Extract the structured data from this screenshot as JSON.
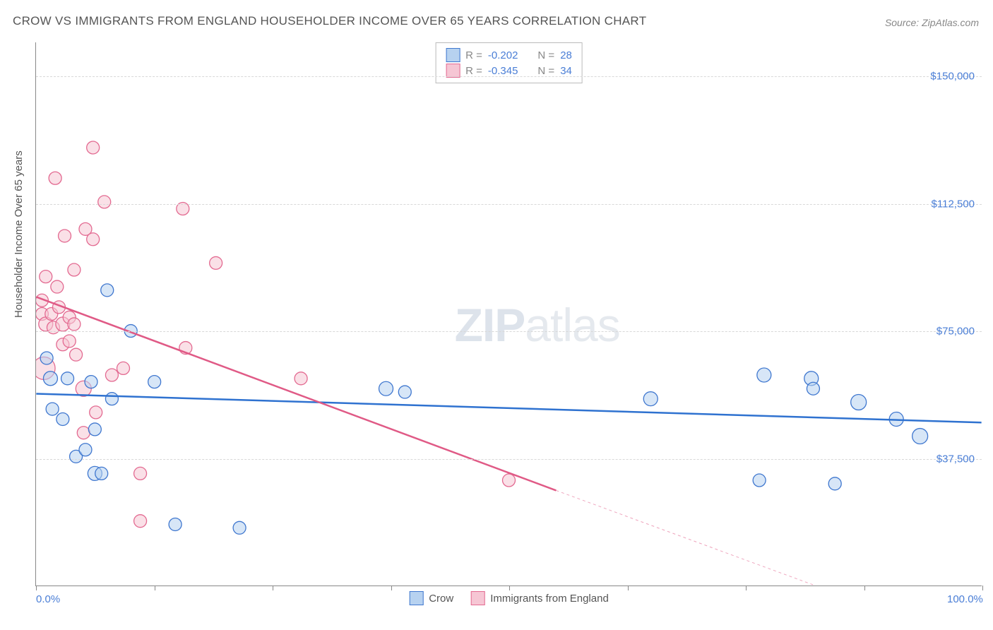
{
  "title": "CROW VS IMMIGRANTS FROM ENGLAND HOUSEHOLDER INCOME OVER 65 YEARS CORRELATION CHART",
  "source_label": "Source: ZipAtlas.com",
  "ylabel": "Householder Income Over 65 years",
  "watermark_a": "ZIP",
  "watermark_b": "atlas",
  "chart": {
    "type": "scatter",
    "background_color": "#ffffff",
    "grid_color": "#d8d8d8",
    "grid_style": "dashed",
    "axis_color": "#888888",
    "label_color": "#555555",
    "tick_label_color": "#4a7ed6",
    "title_fontsize": 17,
    "label_fontsize": 15,
    "tick_fontsize": 15,
    "xlim": [
      0,
      100
    ],
    "ylim": [
      0,
      160000
    ],
    "yticks": [
      37500,
      75000,
      112500,
      150000
    ],
    "ytick_labels": [
      "$37,500",
      "$75,000",
      "$112,500",
      "$150,000"
    ],
    "xtick_positions": [
      0,
      12.5,
      25,
      37.5,
      50,
      62.5,
      75,
      87.5,
      100
    ],
    "xtick_labels_shown": {
      "0": "0.0%",
      "100": "100.0%"
    },
    "legend_top": [
      {
        "swatch_fill": "#b7d2f0",
        "swatch_border": "#3f77cf",
        "r_label": "R = ",
        "r_value": "-0.202",
        "n_label": "N = ",
        "n_value": "28"
      },
      {
        "swatch_fill": "#f6c6d4",
        "swatch_border": "#e36a91",
        "r_label": "R = ",
        "r_value": "-0.345",
        "n_label": "N = ",
        "n_value": "34"
      }
    ],
    "legend_bottom": [
      {
        "swatch_fill": "#b7d2f0",
        "swatch_border": "#3f77cf",
        "label": "Crow"
      },
      {
        "swatch_fill": "#f6c6d4",
        "swatch_border": "#e36a91",
        "label": "Immigrants from England"
      }
    ],
    "series": [
      {
        "name": "Crow",
        "color_fill": "#b7d2f0",
        "color_stroke": "#3f77cf",
        "fill_opacity": 0.55,
        "marker_radius_default": 9,
        "trendline": {
          "x1": 0,
          "y1": 56500,
          "x2": 100,
          "y2": 48000,
          "color": "#2f72d0",
          "width": 2.5,
          "dash": "none"
        },
        "points": [
          {
            "x": 1.1,
            "y": 67000,
            "r": 9
          },
          {
            "x": 1.5,
            "y": 61000,
            "r": 10
          },
          {
            "x": 3.3,
            "y": 61000,
            "r": 9
          },
          {
            "x": 1.7,
            "y": 52000,
            "r": 9
          },
          {
            "x": 2.8,
            "y": 49000,
            "r": 9
          },
          {
            "x": 5.8,
            "y": 60000,
            "r": 9
          },
          {
            "x": 4.2,
            "y": 38000,
            "r": 9
          },
          {
            "x": 5.2,
            "y": 40000,
            "r": 9
          },
          {
            "x": 6.2,
            "y": 46000,
            "r": 9
          },
          {
            "x": 6.2,
            "y": 33000,
            "r": 10
          },
          {
            "x": 6.9,
            "y": 33000,
            "r": 9
          },
          {
            "x": 7.5,
            "y": 87000,
            "r": 9
          },
          {
            "x": 8.0,
            "y": 55000,
            "r": 9
          },
          {
            "x": 10.0,
            "y": 75000,
            "r": 9
          },
          {
            "x": 12.5,
            "y": 60000,
            "r": 9
          },
          {
            "x": 14.7,
            "y": 18000,
            "r": 9
          },
          {
            "x": 21.5,
            "y": 17000,
            "r": 9
          },
          {
            "x": 37.0,
            "y": 58000,
            "r": 10
          },
          {
            "x": 39.0,
            "y": 57000,
            "r": 9
          },
          {
            "x": 65.0,
            "y": 55000,
            "r": 10
          },
          {
            "x": 77.0,
            "y": 62000,
            "r": 10
          },
          {
            "x": 76.5,
            "y": 31000,
            "r": 9
          },
          {
            "x": 82.0,
            "y": 61000,
            "r": 10
          },
          {
            "x": 82.2,
            "y": 58000,
            "r": 9
          },
          {
            "x": 84.5,
            "y": 30000,
            "r": 9
          },
          {
            "x": 87.0,
            "y": 54000,
            "r": 11
          },
          {
            "x": 91.0,
            "y": 49000,
            "r": 10
          },
          {
            "x": 93.5,
            "y": 44000,
            "r": 11
          }
        ]
      },
      {
        "name": "Immigrants from England",
        "color_fill": "#f6c6d4",
        "color_stroke": "#e36a91",
        "fill_opacity": 0.55,
        "marker_radius_default": 9,
        "trendline": {
          "x1": 0,
          "y1": 85000,
          "x2": 55,
          "y2": 28000,
          "color": "#e05a86",
          "width": 2.5,
          "dash": "none",
          "extend": {
            "x1": 55,
            "y1": 28000,
            "x2": 100,
            "y2": -18000,
            "dash": "4 4",
            "width": 1
          }
        },
        "points": [
          {
            "x": 0.8,
            "y": 64000,
            "r": 16
          },
          {
            "x": 0.6,
            "y": 80000,
            "r": 9
          },
          {
            "x": 0.6,
            "y": 84000,
            "r": 9
          },
          {
            "x": 1.0,
            "y": 77000,
            "r": 10
          },
          {
            "x": 1.0,
            "y": 91000,
            "r": 9
          },
          {
            "x": 1.6,
            "y": 80000,
            "r": 9
          },
          {
            "x": 1.8,
            "y": 76000,
            "r": 9
          },
          {
            "x": 2.0,
            "y": 120000,
            "r": 9
          },
          {
            "x": 2.2,
            "y": 88000,
            "r": 9
          },
          {
            "x": 2.4,
            "y": 82000,
            "r": 9
          },
          {
            "x": 2.8,
            "y": 77000,
            "r": 10
          },
          {
            "x": 2.8,
            "y": 71000,
            "r": 9
          },
          {
            "x": 3.0,
            "y": 103000,
            "r": 9
          },
          {
            "x": 3.5,
            "y": 79000,
            "r": 9
          },
          {
            "x": 3.5,
            "y": 72000,
            "r": 9
          },
          {
            "x": 4.0,
            "y": 93000,
            "r": 9
          },
          {
            "x": 4.0,
            "y": 77000,
            "r": 9
          },
          {
            "x": 4.2,
            "y": 68000,
            "r": 9
          },
          {
            "x": 5.0,
            "y": 58000,
            "r": 11
          },
          {
            "x": 5.2,
            "y": 105000,
            "r": 9
          },
          {
            "x": 5.0,
            "y": 45000,
            "r": 9
          },
          {
            "x": 6.0,
            "y": 129000,
            "r": 9
          },
          {
            "x": 6.0,
            "y": 102000,
            "r": 9
          },
          {
            "x": 6.3,
            "y": 51000,
            "r": 9
          },
          {
            "x": 7.2,
            "y": 113000,
            "r": 9
          },
          {
            "x": 8.0,
            "y": 62000,
            "r": 9
          },
          {
            "x": 9.2,
            "y": 64000,
            "r": 9
          },
          {
            "x": 11.0,
            "y": 33000,
            "r": 9
          },
          {
            "x": 11.0,
            "y": 19000,
            "r": 9
          },
          {
            "x": 15.5,
            "y": 111000,
            "r": 9
          },
          {
            "x": 15.8,
            "y": 70000,
            "r": 9
          },
          {
            "x": 19.0,
            "y": 95000,
            "r": 9
          },
          {
            "x": 28.0,
            "y": 61000,
            "r": 9
          },
          {
            "x": 50.0,
            "y": 31000,
            "r": 9
          }
        ]
      }
    ]
  }
}
